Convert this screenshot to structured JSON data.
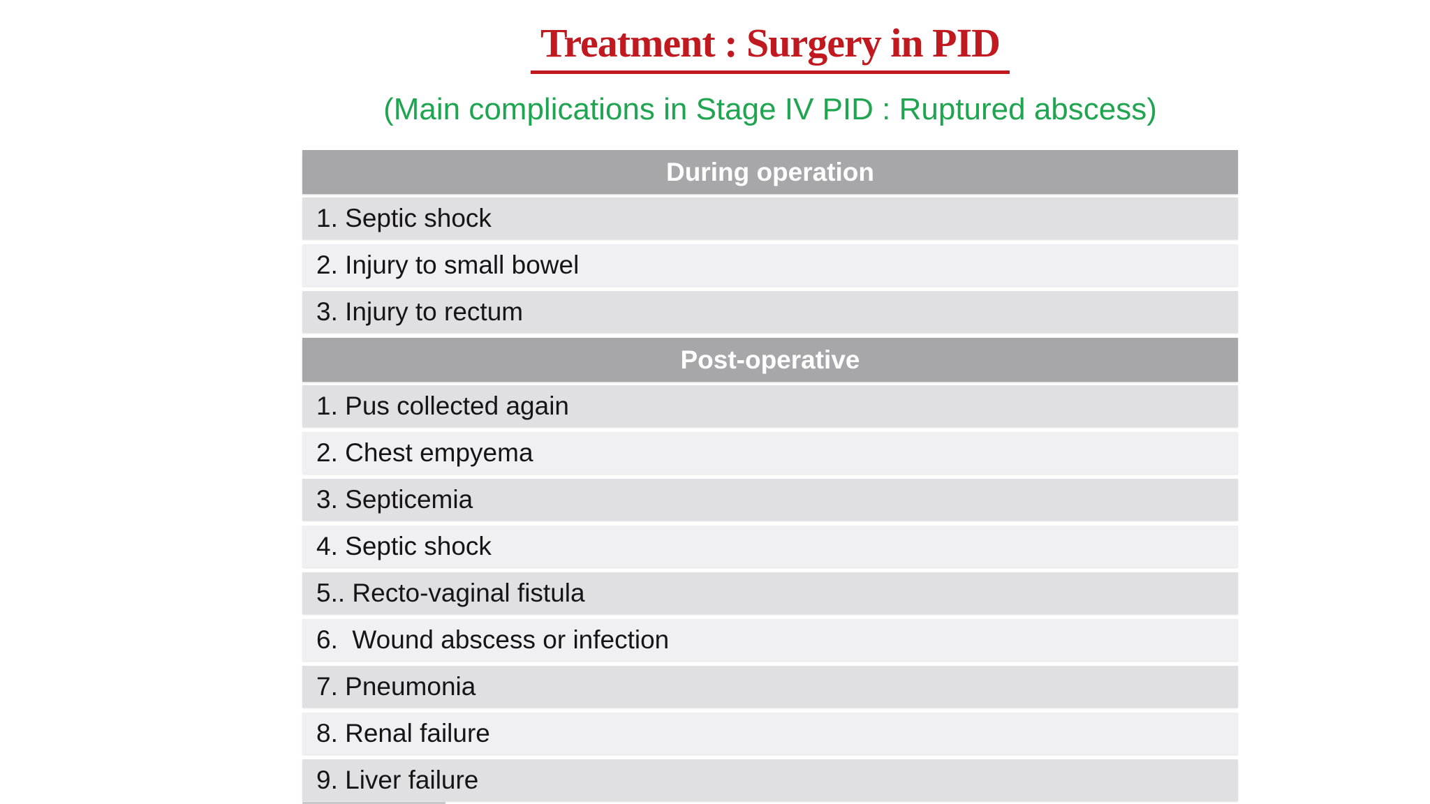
{
  "title": {
    "text": "Treatment : Surgery in PID"
  },
  "subtitle": {
    "text": "(Main complications in Stage IV PID : Ruptured abscess)"
  },
  "table": {
    "sections": [
      {
        "header": "During operation",
        "rows": [
          "1. Septic shock",
          "2. Injury to small bowel",
          "3. Injury to rectum"
        ]
      },
      {
        "header": "Post-operative",
        "rows": [
          "1. Pus collected again",
          "2. Chest empyema",
          "3. Septicemia",
          "4. Septic shock",
          "5.. Recto-vaginal fistula",
          "6.  Wound abscess or infection",
          "7. Pneumonia",
          "8. Renal failure",
          "9. Liver failure"
        ]
      }
    ]
  },
  "colors": {
    "title-red": "#c0191f",
    "subtitle-green": "#1fa450",
    "header-gray": "#a7a7a9",
    "band-dark": "#e0dfe2",
    "band-light": "#f0eff2",
    "sliver-gray": "#c9c9cc"
  }
}
